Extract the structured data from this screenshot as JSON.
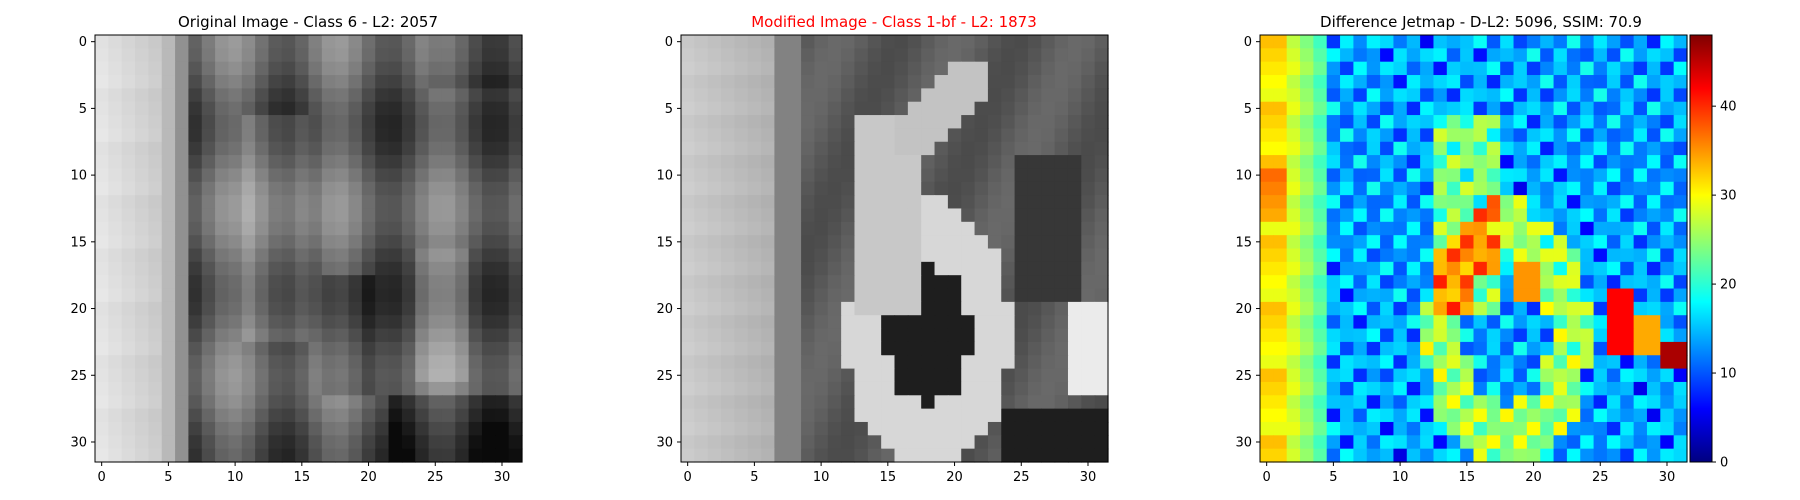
{
  "chart_data": [
    {
      "type": "heatmap",
      "title": "Original Image - Class 6 - L2: 2057",
      "title_color": "#000000",
      "colormap": "gray",
      "xlim": [
        0,
        31
      ],
      "ylim": [
        31,
        0
      ],
      "x_ticks": [
        0,
        5,
        10,
        15,
        20,
        25,
        30
      ],
      "y_ticks": [
        0,
        5,
        10,
        15,
        20,
        25,
        30
      ],
      "grid_size": [
        32,
        32
      ]
    },
    {
      "type": "heatmap",
      "title": "Modified Image - Class 1-bf - L2: 1873",
      "title_color": "#ff0000",
      "colormap": "gray",
      "xlim": [
        0,
        31
      ],
      "ylim": [
        31,
        0
      ],
      "x_ticks": [
        0,
        5,
        10,
        15,
        20,
        25,
        30
      ],
      "y_ticks": [
        0,
        5,
        10,
        15,
        20,
        25,
        30
      ],
      "grid_size": [
        32,
        32
      ]
    },
    {
      "type": "heatmap",
      "title": "Difference Jetmap - D-L2: 5096, SSIM: 70.9",
      "title_color": "#000000",
      "colormap": "jet",
      "xlim": [
        0,
        31
      ],
      "ylim": [
        31,
        0
      ],
      "x_ticks": [
        0,
        5,
        10,
        15,
        20,
        25,
        30
      ],
      "y_ticks": [
        0,
        5,
        10,
        15,
        20,
        25,
        30
      ],
      "grid_size": [
        32,
        32
      ],
      "colorbar": {
        "range": [
          0,
          48
        ],
        "ticks": [
          0,
          10,
          20,
          30,
          40
        ]
      }
    }
  ]
}
